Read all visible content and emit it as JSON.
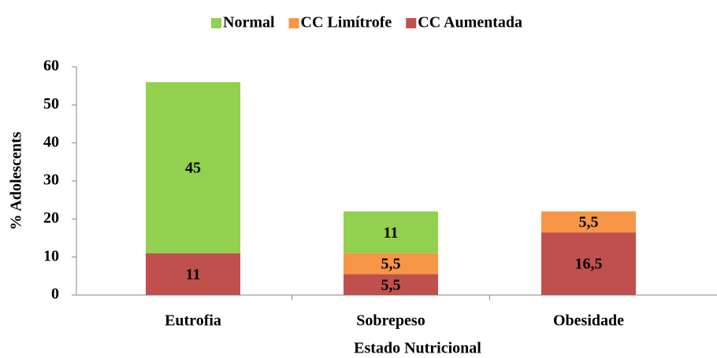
{
  "chart_data": {
    "type": "bar",
    "stacked": true,
    "x_label": "Estado Nutricional",
    "y_label": "% Adolescents",
    "categories": [
      "Eutrofia",
      "Sobrepeso",
      "Obesidade"
    ],
    "series": [
      {
        "name": "Normal",
        "color": "#92d050",
        "values": [
          45,
          11,
          0
        ],
        "value_labels": [
          "45",
          "11",
          null
        ]
      },
      {
        "name": "CC Limítrofe",
        "color": "#f79646",
        "values": [
          0,
          5.5,
          5.5
        ],
        "value_labels": [
          null,
          "5,5",
          "5,5"
        ]
      },
      {
        "name": "CC Aumentada",
        "color": "#c0504d",
        "values": [
          11,
          5.5,
          16.5
        ],
        "value_labels": [
          "11",
          "5,5",
          "16,5"
        ]
      }
    ],
    "ylim": [
      0,
      60
    ],
    "yticks": [
      0,
      10,
      20,
      30,
      40,
      50,
      60
    ],
    "legend": "top"
  }
}
